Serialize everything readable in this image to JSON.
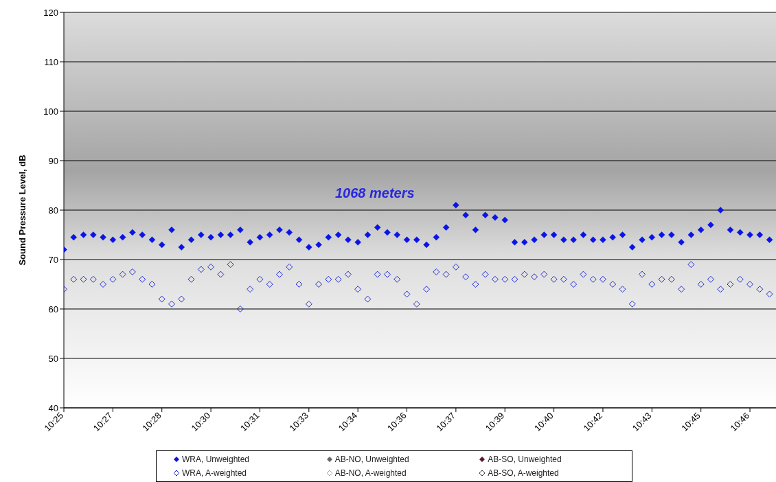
{
  "chart_data": {
    "type": "scatter",
    "ylabel": "Sound Pressure Level, dB",
    "grid": "y",
    "legend": "bottom",
    "annotations": [
      "1068 meters"
    ],
    "xlim": [
      10.4167,
      10.78
    ],
    "ylim": [
      40,
      120
    ],
    "yticks": [
      40,
      50,
      60,
      70,
      80,
      90,
      100,
      110,
      120
    ],
    "xticks": [
      {
        "value": 10.4167,
        "label": "10:25"
      },
      {
        "value": 10.4417,
        "label": "10:27"
      },
      {
        "value": 10.4667,
        "label": "10:28"
      },
      {
        "value": 10.4917,
        "label": "10:30"
      },
      {
        "value": 10.5167,
        "label": "10:31"
      },
      {
        "value": 10.5417,
        "label": "10:33"
      },
      {
        "value": 10.5667,
        "label": "10:34"
      },
      {
        "value": 10.5917,
        "label": "10:36"
      },
      {
        "value": 10.6167,
        "label": "10:37"
      },
      {
        "value": 10.6417,
        "label": "10:39"
      },
      {
        "value": 10.6667,
        "label": "10:40"
      },
      {
        "value": 10.6917,
        "label": "10:42"
      },
      {
        "value": 10.7167,
        "label": "10:43"
      },
      {
        "value": 10.7417,
        "label": "10:45"
      },
      {
        "value": 10.7667,
        "label": "10:46"
      }
    ],
    "x": [
      10.4167,
      10.4217,
      10.4267,
      10.4317,
      10.4367,
      10.4417,
      10.4467,
      10.4517,
      10.4567,
      10.4617,
      10.4667,
      10.4717,
      10.4767,
      10.4817,
      10.4867,
      10.4917,
      10.4967,
      10.5017,
      10.5067,
      10.5117,
      10.5167,
      10.5217,
      10.5267,
      10.5317,
      10.5367,
      10.5417,
      10.5467,
      10.5517,
      10.5567,
      10.5617,
      10.5667,
      10.5717,
      10.5767,
      10.5817,
      10.5867,
      10.5917,
      10.5967,
      10.6017,
      10.6067,
      10.6117,
      10.6167,
      10.6217,
      10.6267,
      10.6317,
      10.6367,
      10.6417,
      10.6467,
      10.6517,
      10.6567,
      10.6617,
      10.6667,
      10.6717,
      10.6767,
      10.6817,
      10.6867,
      10.6917,
      10.6967,
      10.7017,
      10.7067,
      10.7117,
      10.7167,
      10.7217,
      10.7267,
      10.7317,
      10.7367,
      10.7417,
      10.7467,
      10.7517,
      10.7567,
      10.7617,
      10.7667,
      10.7717,
      10.7767
    ],
    "series": [
      {
        "name": "WRA, Unweighted",
        "color": "#0a14e6",
        "marker": "diamond",
        "values": [
          72,
          74.5,
          75,
          75,
          74.5,
          74,
          74.5,
          75.5,
          75,
          74,
          73,
          76,
          72.5,
          74,
          75,
          74.5,
          75,
          75,
          76,
          73.5,
          74.5,
          75,
          76,
          75.5,
          74,
          72.5,
          73,
          74.5,
          75,
          74,
          73.5,
          75,
          76.5,
          75.5,
          75,
          74,
          74,
          73,
          74.5,
          76.5,
          81,
          79,
          76,
          79,
          78.5,
          78,
          73.5,
          73.5,
          74,
          75,
          75,
          74,
          74,
          75,
          74,
          74,
          74.5,
          75,
          72.5,
          74,
          74.5,
          75,
          75,
          73.5,
          75,
          76,
          77,
          80,
          76,
          75.5,
          75,
          75,
          74
        ]
      },
      {
        "name": "AB-NO, Unweighted",
        "color": "#666666",
        "marker": "diamond",
        "values": [
          null,
          null,
          null,
          null,
          null,
          null,
          null,
          null,
          null,
          null,
          null,
          null,
          null,
          null,
          null,
          null,
          null,
          null,
          null,
          null,
          null,
          null,
          null,
          null,
          null,
          null,
          null,
          null,
          null,
          null,
          null,
          null,
          null,
          null,
          null,
          null,
          null,
          null,
          null,
          null,
          null,
          null,
          null,
          null,
          null,
          null,
          null,
          null,
          null,
          null,
          null,
          null,
          null,
          null,
          null,
          null,
          null,
          null,
          null,
          null,
          null,
          null,
          null,
          null,
          null,
          null,
          null,
          null,
          null,
          null,
          null,
          null,
          null
        ]
      },
      {
        "name": "AB-SO, Unweighted",
        "color": "#5a1a2a",
        "marker": "diamond",
        "values": [
          null,
          null,
          null,
          null,
          null,
          null,
          null,
          null,
          null,
          null,
          null,
          null,
          null,
          null,
          null,
          null,
          null,
          null,
          null,
          null,
          null,
          null,
          null,
          null,
          null,
          null,
          null,
          null,
          null,
          null,
          null,
          null,
          null,
          null,
          null,
          null,
          null,
          null,
          null,
          null,
          null,
          null,
          null,
          null,
          null,
          null,
          null,
          null,
          null,
          null,
          null,
          null,
          null,
          null,
          null,
          null,
          null,
          null,
          null,
          null,
          null,
          null,
          null,
          null,
          null,
          null,
          null,
          null,
          null,
          null,
          null,
          null,
          null
        ]
      },
      {
        "name": "WRA, A-weighted",
        "color": "#1e28d2",
        "marker": "diamond-open",
        "values": [
          64,
          66,
          66,
          66,
          65,
          66,
          67,
          67.5,
          66,
          65,
          62,
          61,
          62,
          66,
          68,
          68.5,
          67,
          69,
          60,
          64,
          66,
          65,
          67,
          68.5,
          65,
          61,
          65,
          66,
          66,
          67,
          64,
          62,
          67,
          67,
          66,
          63,
          61,
          64,
          67.5,
          67,
          68.5,
          66.5,
          65,
          67,
          66,
          66,
          66,
          67,
          66.5,
          67,
          66,
          66,
          65,
          67,
          66,
          66,
          65,
          64,
          61,
          67,
          65,
          66,
          66,
          64,
          69,
          65,
          66,
          64,
          65,
          66,
          65,
          64,
          63
        ]
      },
      {
        "name": "AB-NO, A-weighted",
        "color": "#aaaaaa",
        "marker": "diamond-open",
        "values": [
          null,
          null,
          null,
          null,
          null,
          null,
          null,
          null,
          null,
          null,
          null,
          null,
          null,
          null,
          null,
          null,
          null,
          null,
          null,
          null,
          null,
          null,
          null,
          null,
          null,
          null,
          null,
          null,
          null,
          null,
          null,
          null,
          null,
          null,
          null,
          null,
          null,
          null,
          null,
          null,
          null,
          null,
          null,
          null,
          null,
          null,
          null,
          null,
          null,
          null,
          null,
          null,
          null,
          null,
          null,
          null,
          null,
          null,
          null,
          null,
          null,
          null,
          null,
          null,
          null,
          null,
          null,
          null,
          null,
          null,
          null,
          null,
          null
        ]
      },
      {
        "name": "AB-SO, A-weighted",
        "color": "#333333",
        "marker": "diamond-open",
        "values": [
          null,
          null,
          null,
          null,
          null,
          null,
          null,
          null,
          null,
          null,
          null,
          null,
          null,
          null,
          null,
          null,
          null,
          null,
          null,
          null,
          null,
          null,
          null,
          null,
          null,
          null,
          null,
          null,
          null,
          null,
          null,
          null,
          null,
          null,
          null,
          null,
          null,
          null,
          null,
          null,
          null,
          null,
          null,
          null,
          null,
          null,
          null,
          null,
          null,
          null,
          null,
          null,
          null,
          null,
          null,
          null,
          null,
          null,
          null,
          null,
          null,
          null,
          null,
          null,
          null,
          null,
          null,
          null,
          null,
          null,
          null,
          null,
          null
        ]
      }
    ]
  }
}
